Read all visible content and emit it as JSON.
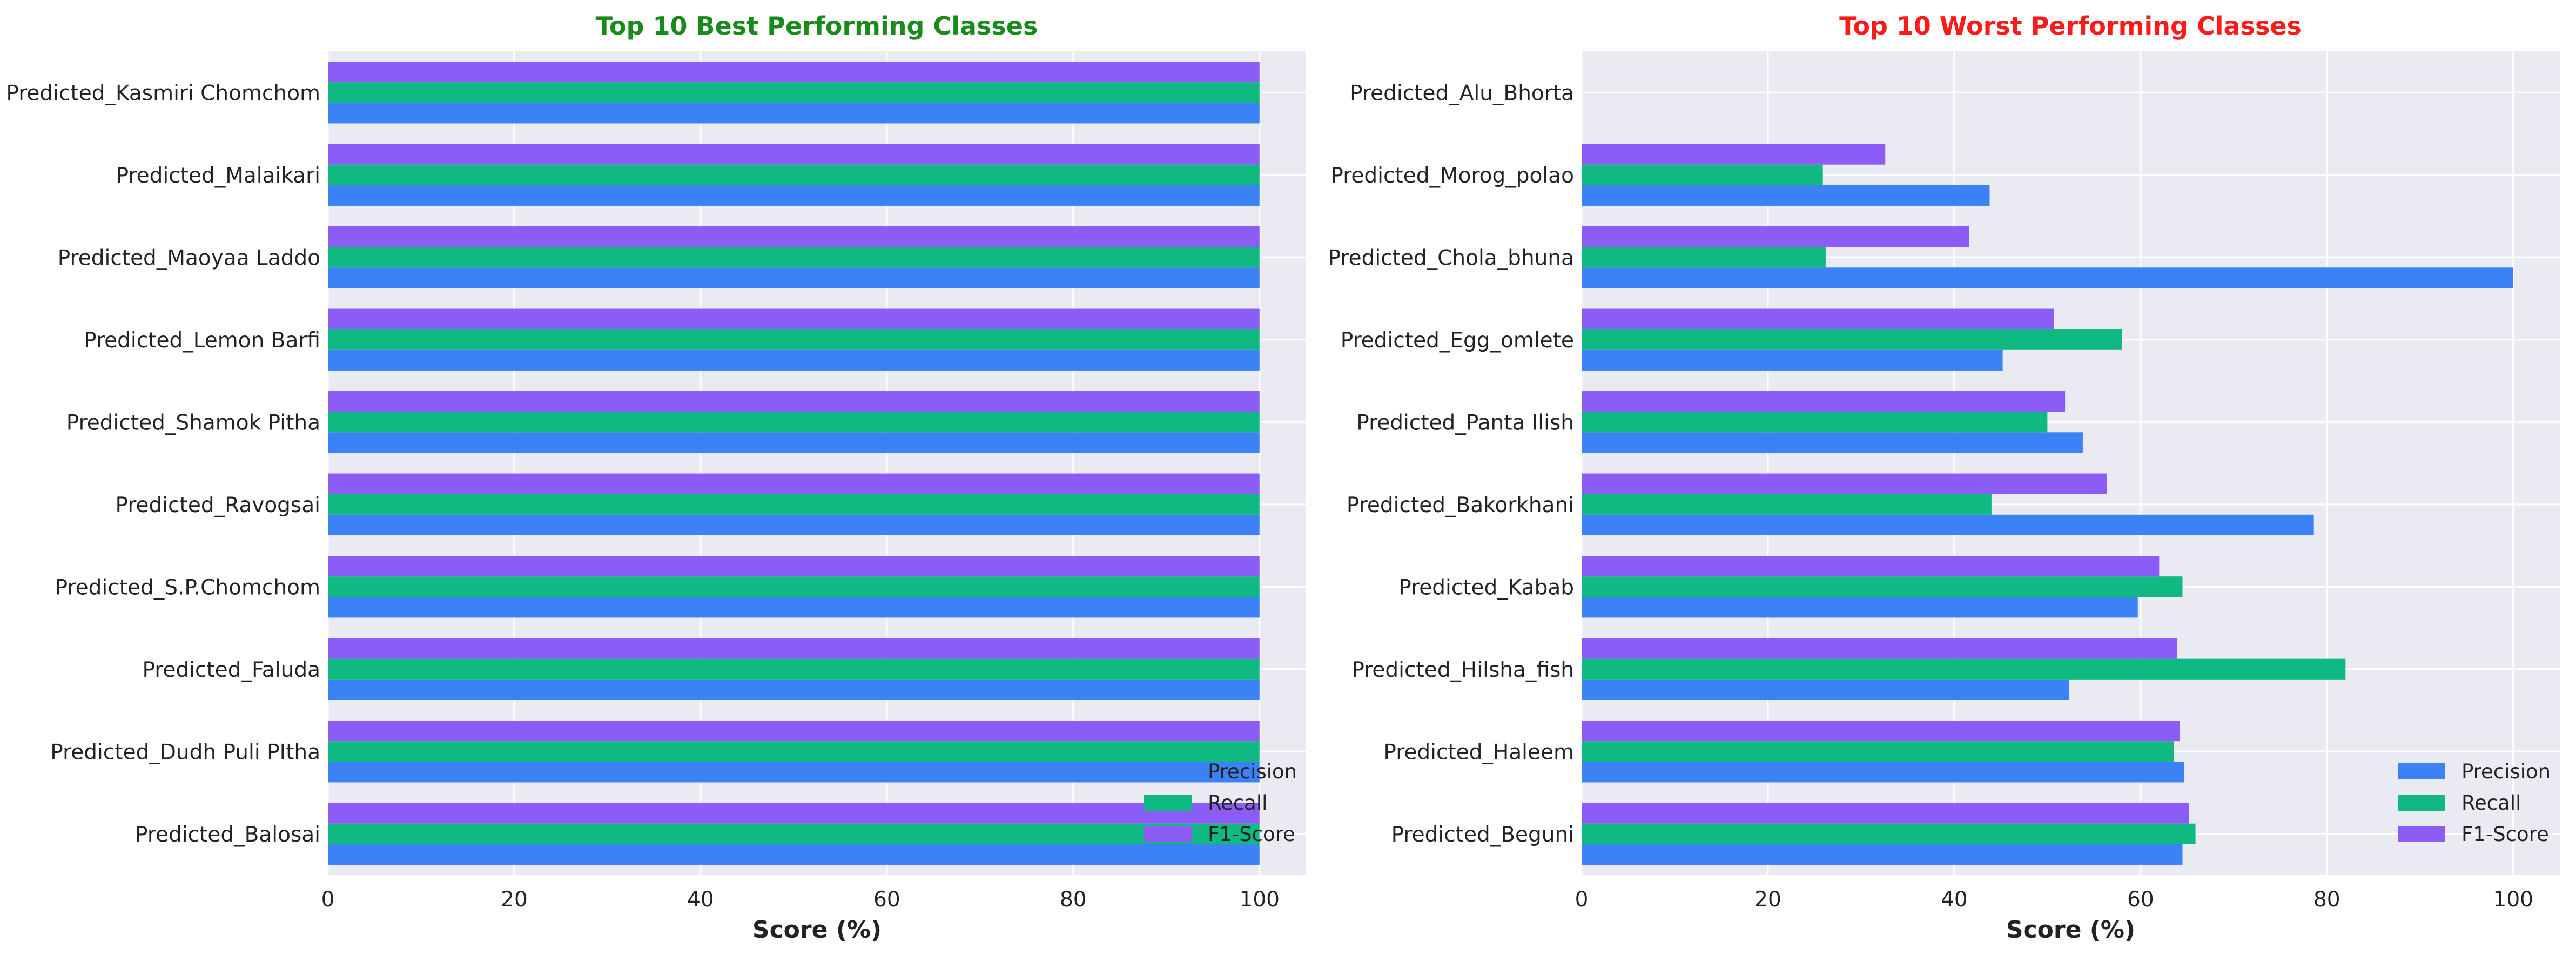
{
  "colors": {
    "precision": "#3b82f6",
    "recall": "#10b981",
    "f1": "#8b5cf6",
    "plot_bg": "#eaeaf2",
    "grid": "#ffffff",
    "best_title": "#1a8a1a",
    "worst_title": "#ff1a1a"
  },
  "chart_data": [
    {
      "type": "bar",
      "orientation": "horizontal",
      "title": "Top 10 Best Performing Classes",
      "xlabel": "Score (%)",
      "ylabel": "",
      "xlim": [
        0,
        105
      ],
      "xticks": [
        0,
        20,
        40,
        60,
        80,
        100
      ],
      "grid": true,
      "legend_position": "lower-right",
      "categories": [
        "Predicted_Kasmiri Chomchom",
        "Predicted_Malaikari",
        "Predicted_Maoyaa Laddo",
        "Predicted_Lemon Barfi",
        "Predicted_Shamok Pitha",
        "Predicted_Ravogsai",
        "Predicted_S.P.Chomchom",
        "Predicted_Faluda",
        "Predicted_Dudh Puli PItha",
        "Predicted_Balosai"
      ],
      "series": [
        {
          "name": "Precision",
          "values": [
            100,
            100,
            100,
            100,
            100,
            100,
            100,
            100,
            100,
            100
          ]
        },
        {
          "name": "Recall",
          "values": [
            100,
            100,
            100,
            100,
            100,
            100,
            100,
            100,
            100,
            100
          ]
        },
        {
          "name": "F1-Score",
          "values": [
            100,
            100,
            100,
            100,
            100,
            100,
            100,
            100,
            100,
            100
          ]
        }
      ]
    },
    {
      "type": "bar",
      "orientation": "horizontal",
      "title": "Top 10 Worst Performing Classes",
      "xlabel": "Score (%)",
      "ylabel": "",
      "xlim": [
        0,
        105
      ],
      "xticks": [
        0,
        20,
        40,
        60,
        80,
        100
      ],
      "grid": true,
      "legend_position": "lower-right",
      "categories": [
        "Predicted_Alu_Bhorta",
        "Predicted_Morog_polao",
        "Predicted_Chola_bhuna",
        "Predicted_Egg_omlete",
        "Predicted_Panta Ilish",
        "Predicted_Bakorkhani",
        "Predicted_Kabab",
        "Predicted_Hilsha_fish",
        "Predicted_Haleem",
        "Predicted_Beguni"
      ],
      "series": [
        {
          "name": "Precision",
          "values": [
            0,
            43.8,
            100,
            45.2,
            53.8,
            78.6,
            59.7,
            52.3,
            64.7,
            64.5
          ]
        },
        {
          "name": "Recall",
          "values": [
            0,
            25.9,
            26.2,
            58.0,
            50.0,
            44.0,
            64.5,
            82.0,
            63.6,
            65.9
          ]
        },
        {
          "name": "F1-Score",
          "values": [
            0,
            32.6,
            41.6,
            50.7,
            51.9,
            56.4,
            62.0,
            63.9,
            64.2,
            65.2
          ]
        }
      ]
    }
  ]
}
